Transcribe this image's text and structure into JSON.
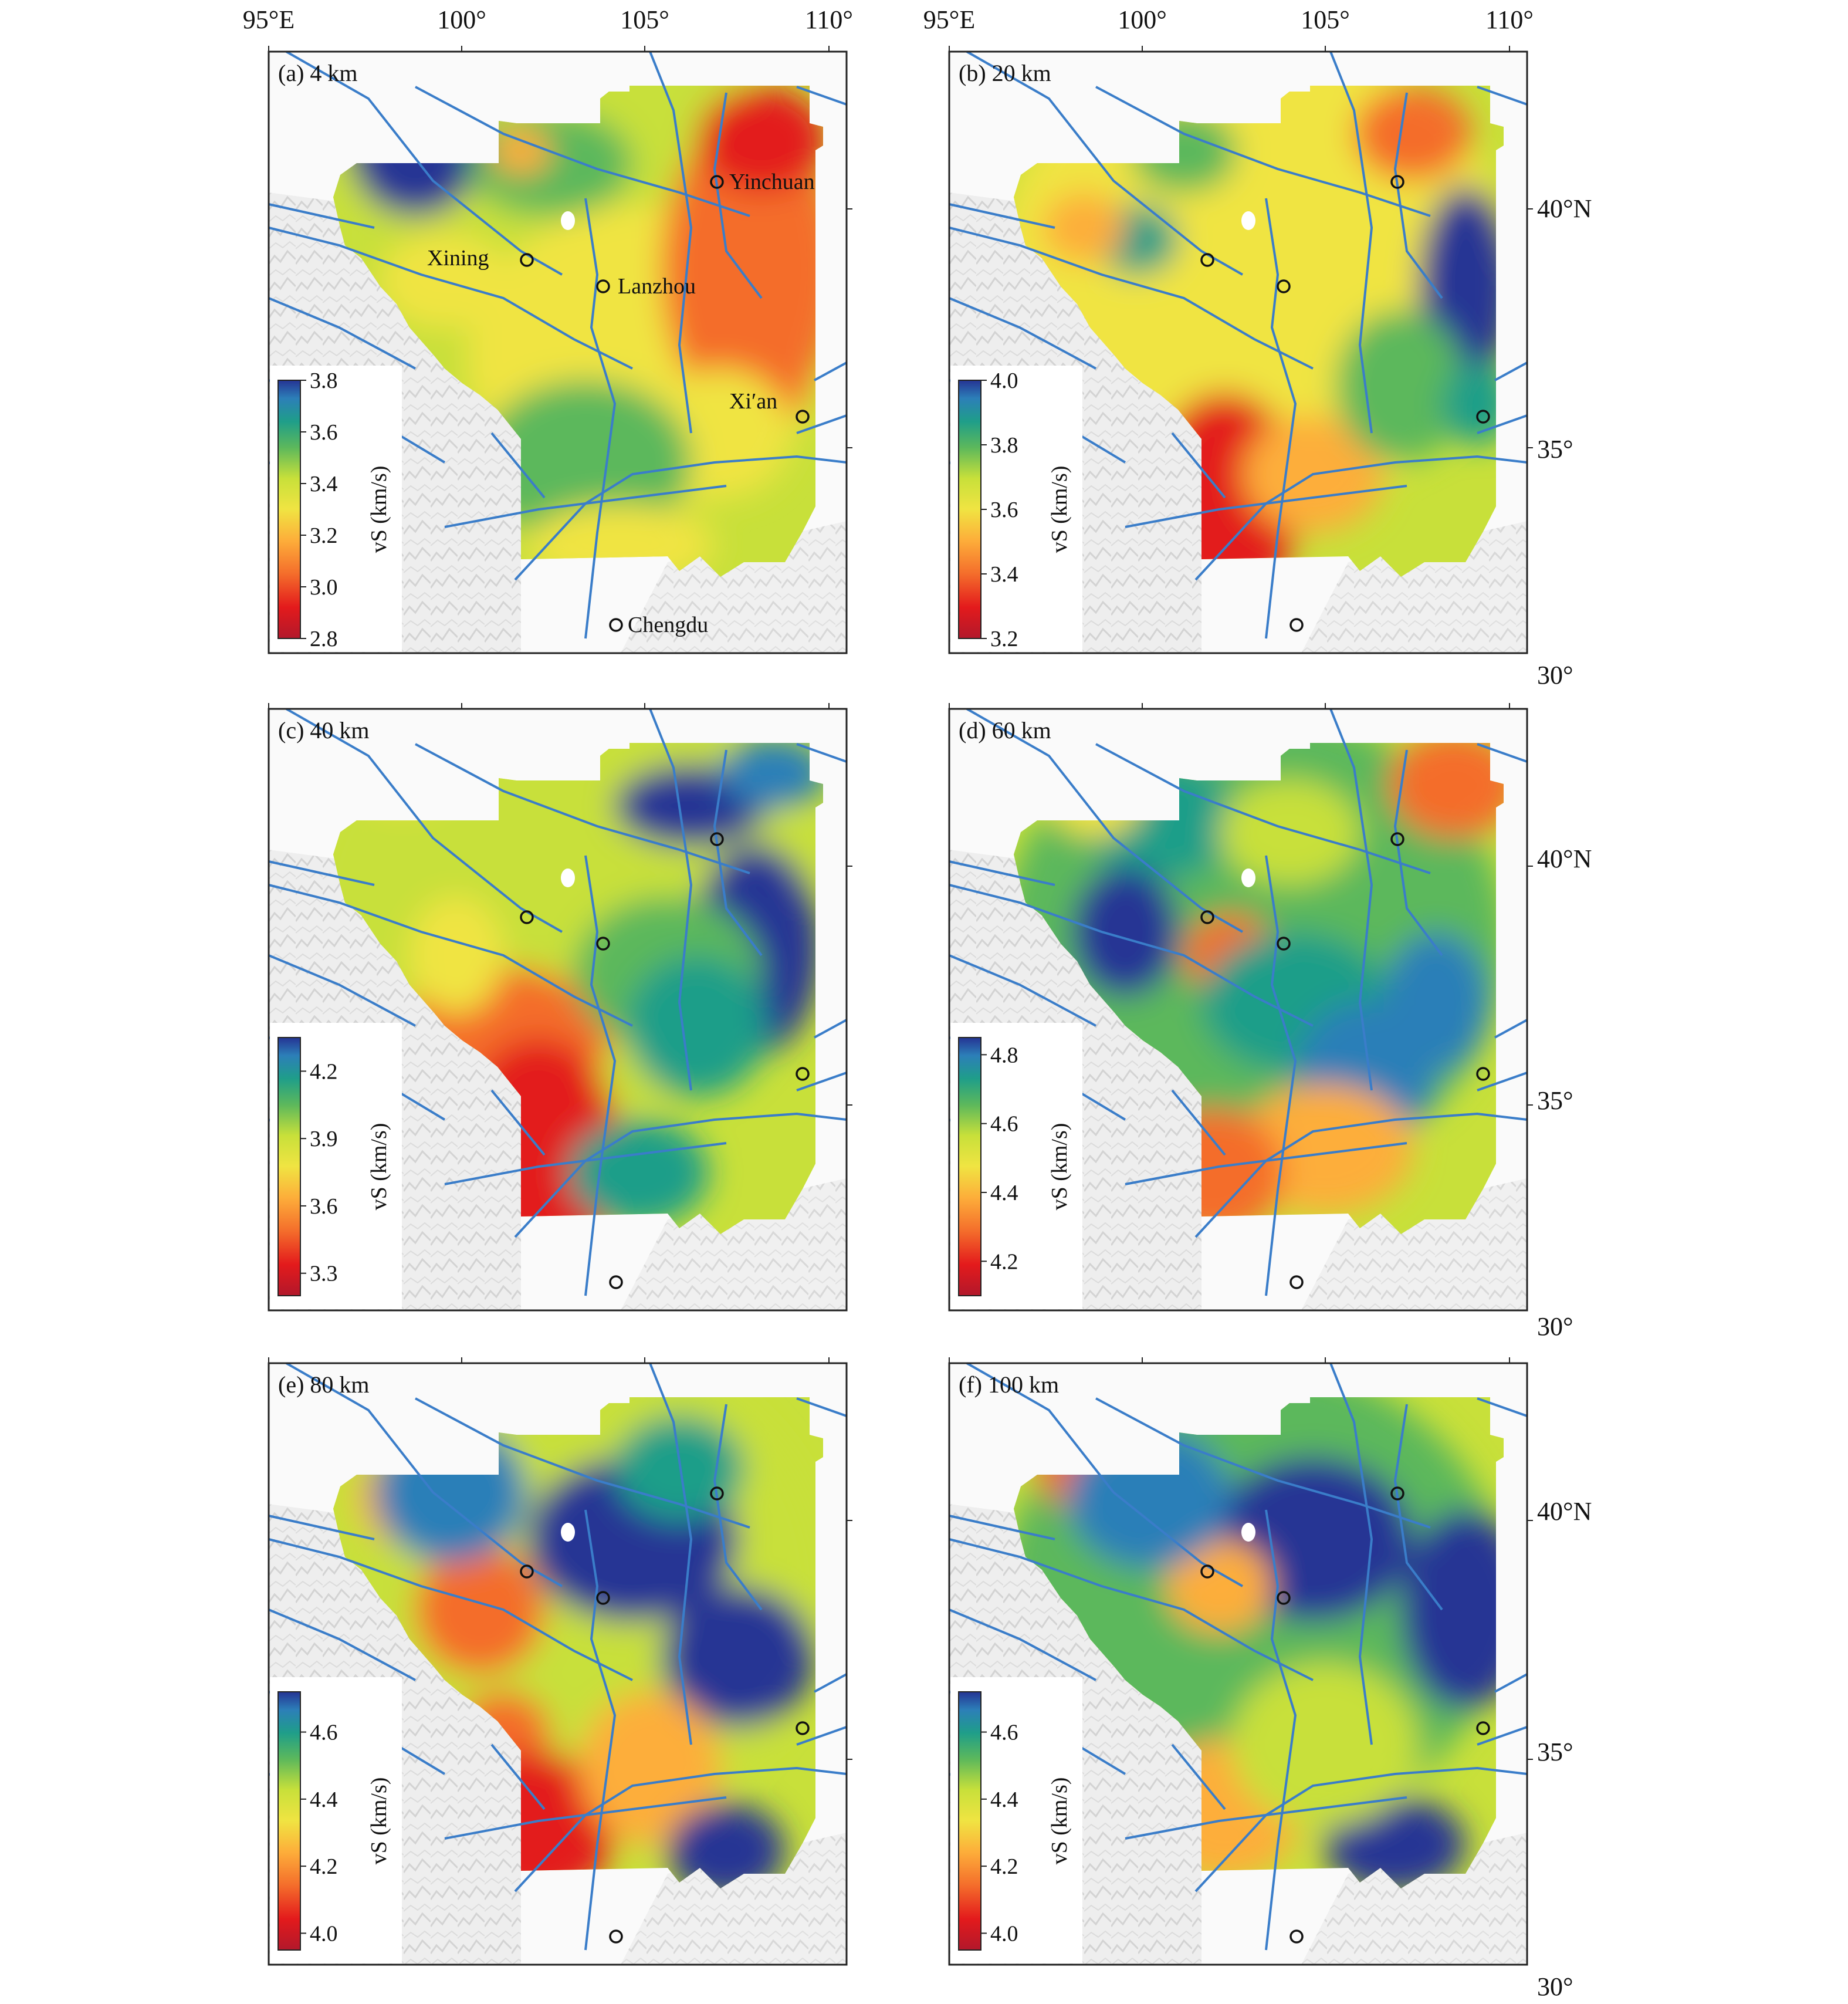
{
  "axes": {
    "lon_ticks": [
      "95°E",
      "100°",
      "105°",
      "110°"
    ],
    "lat_ticks": [
      "40°N",
      "35°",
      "30°"
    ]
  },
  "colorbar_label": "vS (km/s)",
  "cities": {
    "yinchuan": "Yinchuan",
    "xining": "Xining",
    "lanzhou": "Lanzhou",
    "xian": "Xi′an",
    "chengdu": "Chengdu"
  },
  "panels": [
    {
      "label": "(a) 4 km",
      "colorbar_ticks": [
        "3.8",
        "3.6",
        "3.4",
        "3.2",
        "3.0",
        "2.8"
      ],
      "vmin": 2.8,
      "vmax": 3.8
    },
    {
      "label": "(b) 20 km",
      "colorbar_ticks": [
        "4.0",
        "3.8",
        "3.6",
        "3.4",
        "3.2"
      ],
      "vmin": 3.2,
      "vmax": 4.0
    },
    {
      "label": "(c) 40 km",
      "colorbar_ticks": [
        "4.2",
        "3.9",
        "3.6",
        "3.3"
      ],
      "vmin": 3.2,
      "vmax": 4.35
    },
    {
      "label": "(d) 60 km",
      "colorbar_ticks": [
        "4.8",
        "4.6",
        "4.4",
        "4.2"
      ],
      "vmin": 4.1,
      "vmax": 4.85
    },
    {
      "label": "(e) 80 km",
      "colorbar_ticks": [
        "4.6",
        "4.4",
        "4.2",
        "4.0"
      ],
      "vmin": 3.95,
      "vmax": 4.72
    },
    {
      "label": "(f) 100 km",
      "colorbar_ticks": [
        "4.6",
        "4.4",
        "4.2",
        "4.0"
      ],
      "vmin": 3.95,
      "vmax": 4.72
    }
  ],
  "colors": {
    "palette": [
      "#b2182b",
      "#e31a1c",
      "#f46d2b",
      "#fdae3a",
      "#f0e442",
      "#c8e03a",
      "#5cb85c",
      "#1f9e89",
      "#2c7fb8",
      "#253494"
    ],
    "fault_lines": "#3a7dc9",
    "frame": "#222222"
  }
}
